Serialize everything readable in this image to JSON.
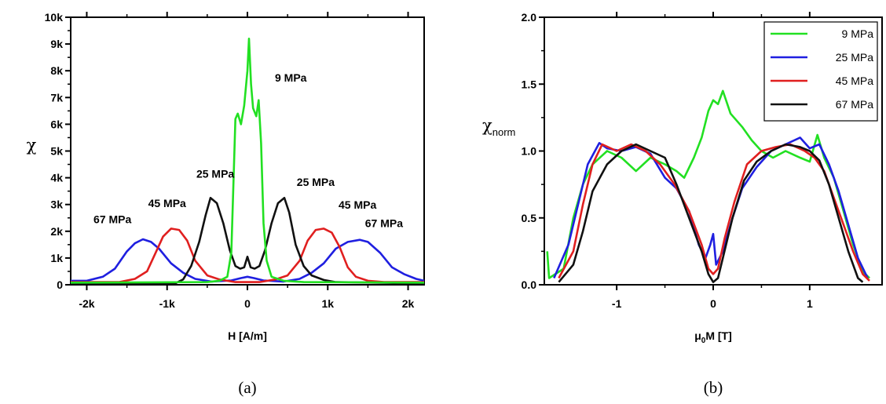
{
  "chart_data": [
    {
      "type": "line",
      "caption": "(a)",
      "xlabel": "H [A/m]",
      "ylabel": "χ",
      "xlim": [
        -2200,
        2200
      ],
      "ylim": [
        0,
        10000
      ],
      "x_ticks": [
        {
          "value": -2000,
          "label": "-2k"
        },
        {
          "value": -1000,
          "label": "-1k"
        },
        {
          "value": 0,
          "label": "0"
        },
        {
          "value": 1000,
          "label": "1k"
        },
        {
          "value": 2000,
          "label": "2k"
        }
      ],
      "y_ticks": [
        {
          "value": 0,
          "label": "0"
        },
        {
          "value": 1000,
          "label": "1k"
        },
        {
          "value": 2000,
          "label": "2k"
        },
        {
          "value": 3000,
          "label": "3k"
        },
        {
          "value": 4000,
          "label": "4k"
        },
        {
          "value": 5000,
          "label": "5k"
        },
        {
          "value": 6000,
          "label": "6k"
        },
        {
          "value": 7000,
          "label": "7k"
        },
        {
          "value": 8000,
          "label": "8k"
        },
        {
          "value": 9000,
          "label": "9k"
        },
        {
          "value": 10000,
          "label": "10k"
        }
      ],
      "grid": false,
      "series": [
        {
          "name": "67 MPa",
          "color": "#1f1fe0",
          "points": [
            [
              -2200,
              150
            ],
            [
              -2000,
              150
            ],
            [
              -1800,
              300
            ],
            [
              -1650,
              600
            ],
            [
              -1500,
              1250
            ],
            [
              -1400,
              1550
            ],
            [
              -1300,
              1700
            ],
            [
              -1200,
              1600
            ],
            [
              -1100,
              1350
            ],
            [
              -950,
              800
            ],
            [
              -800,
              450
            ],
            [
              -650,
              220
            ],
            [
              -450,
              120
            ],
            [
              -200,
              160
            ],
            [
              -80,
              250
            ],
            [
              0,
              300
            ],
            [
              80,
              250
            ],
            [
              200,
              160
            ],
            [
              450,
              120
            ],
            [
              650,
              220
            ],
            [
              800,
              450
            ],
            [
              950,
              800
            ],
            [
              1100,
              1350
            ],
            [
              1250,
              1600
            ],
            [
              1400,
              1680
            ],
            [
              1500,
              1600
            ],
            [
              1650,
              1200
            ],
            [
              1800,
              650
            ],
            [
              1950,
              400
            ],
            [
              2100,
              220
            ],
            [
              2200,
              150
            ]
          ]
        },
        {
          "name": "45 MPa",
          "color": "#e01f1f",
          "points": [
            [
              -2200,
              100
            ],
            [
              -1600,
              100
            ],
            [
              -1400,
              220
            ],
            [
              -1250,
              500
            ],
            [
              -1150,
              1150
            ],
            [
              -1050,
              1800
            ],
            [
              -950,
              2100
            ],
            [
              -850,
              2050
            ],
            [
              -750,
              1650
            ],
            [
              -650,
              900
            ],
            [
              -500,
              350
            ],
            [
              -350,
              200
            ],
            [
              -150,
              100
            ],
            [
              0,
              100
            ],
            [
              150,
              100
            ],
            [
              350,
              200
            ],
            [
              500,
              350
            ],
            [
              650,
              900
            ],
            [
              750,
              1650
            ],
            [
              850,
              2050
            ],
            [
              950,
              2100
            ],
            [
              1050,
              1950
            ],
            [
              1150,
              1400
            ],
            [
              1250,
              650
            ],
            [
              1350,
              300
            ],
            [
              1500,
              150
            ],
            [
              1700,
              100
            ],
            [
              2200,
              100
            ]
          ]
        },
        {
          "name": "25 MPa",
          "color": "#111111",
          "points": [
            [
              -2200,
              50
            ],
            [
              -900,
              50
            ],
            [
              -800,
              200
            ],
            [
              -700,
              700
            ],
            [
              -600,
              1600
            ],
            [
              -520,
              2600
            ],
            [
              -460,
              3250
            ],
            [
              -380,
              3050
            ],
            [
              -300,
              2300
            ],
            [
              -220,
              1300
            ],
            [
              -150,
              700
            ],
            [
              -90,
              600
            ],
            [
              -40,
              650
            ],
            [
              0,
              1050
            ],
            [
              40,
              650
            ],
            [
              90,
              600
            ],
            [
              150,
              700
            ],
            [
              220,
              1300
            ],
            [
              300,
              2300
            ],
            [
              380,
              3050
            ],
            [
              460,
              3250
            ],
            [
              520,
              2700
            ],
            [
              600,
              1500
            ],
            [
              700,
              700
            ],
            [
              800,
              350
            ],
            [
              950,
              180
            ],
            [
              1100,
              100
            ],
            [
              2200,
              50
            ]
          ]
        },
        {
          "name": "9 MPa",
          "color": "#22e022",
          "points": [
            [
              -2200,
              80
            ],
            [
              -500,
              100
            ],
            [
              -350,
              150
            ],
            [
              -250,
              300
            ],
            [
              -200,
              1200
            ],
            [
              -150,
              6200
            ],
            [
              -120,
              6400
            ],
            [
              -80,
              6000
            ],
            [
              -40,
              6700
            ],
            [
              0,
              8000
            ],
            [
              20,
              9200
            ],
            [
              45,
              7500
            ],
            [
              70,
              6600
            ],
            [
              110,
              6300
            ],
            [
              140,
              6900
            ],
            [
              170,
              5300
            ],
            [
              200,
              2300
            ],
            [
              240,
              900
            ],
            [
              300,
              300
            ],
            [
              450,
              150
            ],
            [
              700,
              100
            ],
            [
              2200,
              80
            ]
          ]
        }
      ],
      "annotations": [
        {
          "text": "9 MPa",
          "x": 540,
          "y": 7600
        },
        {
          "text": "25 MPa",
          "x": -400,
          "y": 4000
        },
        {
          "text": "25 MPa",
          "x": 850,
          "y": 3700
        },
        {
          "text": "45 MPa",
          "x": -1000,
          "y": 2900
        },
        {
          "text": "45 MPa",
          "x": 1370,
          "y": 2850
        },
        {
          "text": "67 MPa",
          "x": -1680,
          "y": 2300
        },
        {
          "text": "67 MPa",
          "x": 1700,
          "y": 2150
        }
      ]
    },
    {
      "type": "line",
      "caption": "(b)",
      "xlabel_main": "μ",
      "xlabel_sub": "0",
      "xlabel_rest": "M [T]",
      "ylabel_main": "χ",
      "ylabel_sub": "norm",
      "xlim": [
        -1.75,
        1.75
      ],
      "ylim": [
        0,
        2
      ],
      "x_ticks": [
        {
          "value": -1,
          "label": "-1"
        },
        {
          "value": 0,
          "label": "0"
        },
        {
          "value": 1,
          "label": "1"
        }
      ],
      "y_ticks": [
        {
          "value": 0,
          "label": "0.0"
        },
        {
          "value": 0.5,
          "label": "0.5"
        },
        {
          "value": 1,
          "label": "1.0"
        },
        {
          "value": 1.5,
          "label": "1.5"
        },
        {
          "value": 2,
          "label": "2.0"
        }
      ],
      "grid": false,
      "legend": {
        "position": "top-right",
        "entries": [
          {
            "label": "9 MPa",
            "color": "#22e022"
          },
          {
            "label": "25 MPa",
            "color": "#1f1fe0"
          },
          {
            "label": "45 MPa",
            "color": "#e01f1f"
          },
          {
            "label": "67 MPa",
            "color": "#111111"
          }
        ]
      },
      "series": [
        {
          "name": "9 MPa",
          "color": "#22e022",
          "points": [
            [
              -1.72,
              0.25
            ],
            [
              -1.7,
              0.05
            ],
            [
              -1.55,
              0.12
            ],
            [
              -1.45,
              0.5
            ],
            [
              -1.35,
              0.75
            ],
            [
              -1.25,
              0.9
            ],
            [
              -1.1,
              1.0
            ],
            [
              -0.95,
              0.95
            ],
            [
              -0.8,
              0.85
            ],
            [
              -0.65,
              0.95
            ],
            [
              -0.5,
              0.9
            ],
            [
              -0.38,
              0.85
            ],
            [
              -0.3,
              0.8
            ],
            [
              -0.2,
              0.95
            ],
            [
              -0.12,
              1.1
            ],
            [
              -0.05,
              1.3
            ],
            [
              0,
              1.38
            ],
            [
              0.05,
              1.35
            ],
            [
              0.1,
              1.45
            ],
            [
              0.18,
              1.28
            ],
            [
              0.3,
              1.18
            ],
            [
              0.4,
              1.08
            ],
            [
              0.5,
              1.0
            ],
            [
              0.62,
              0.95
            ],
            [
              0.75,
              1.0
            ],
            [
              0.9,
              0.95
            ],
            [
              1.0,
              0.92
            ],
            [
              1.08,
              1.12
            ],
            [
              1.15,
              0.95
            ],
            [
              1.25,
              0.8
            ],
            [
              1.35,
              0.55
            ],
            [
              1.45,
              0.3
            ],
            [
              1.55,
              0.1
            ],
            [
              1.62,
              0.05
            ]
          ]
        },
        {
          "name": "25 MPa",
          "color": "#1f1fe0",
          "points": [
            [
              -1.65,
              0.05
            ],
            [
              -1.5,
              0.3
            ],
            [
              -1.4,
              0.6
            ],
            [
              -1.3,
              0.9
            ],
            [
              -1.18,
              1.06
            ],
            [
              -1.1,
              1.02
            ],
            [
              -0.95,
              1.0
            ],
            [
              -0.8,
              1.03
            ],
            [
              -0.65,
              0.98
            ],
            [
              -0.5,
              0.8
            ],
            [
              -0.38,
              0.72
            ],
            [
              -0.25,
              0.55
            ],
            [
              -0.15,
              0.3
            ],
            [
              -0.08,
              0.2
            ],
            [
              -0.03,
              0.3
            ],
            [
              0,
              0.38
            ],
            [
              0.03,
              0.15
            ],
            [
              0.1,
              0.25
            ],
            [
              0.2,
              0.5
            ],
            [
              0.3,
              0.72
            ],
            [
              0.45,
              0.88
            ],
            [
              0.6,
              1.0
            ],
            [
              0.75,
              1.05
            ],
            [
              0.9,
              1.1
            ],
            [
              1.0,
              1.02
            ],
            [
              1.1,
              1.05
            ],
            [
              1.2,
              0.9
            ],
            [
              1.3,
              0.7
            ],
            [
              1.4,
              0.45
            ],
            [
              1.5,
              0.2
            ],
            [
              1.6,
              0.05
            ]
          ]
        },
        {
          "name": "45 MPa",
          "color": "#e01f1f",
          "points": [
            [
              -1.6,
              0.05
            ],
            [
              -1.45,
              0.25
            ],
            [
              -1.35,
              0.6
            ],
            [
              -1.25,
              0.9
            ],
            [
              -1.15,
              1.05
            ],
            [
              -1.0,
              1.0
            ],
            [
              -0.85,
              1.05
            ],
            [
              -0.7,
              1.0
            ],
            [
              -0.55,
              0.9
            ],
            [
              -0.4,
              0.75
            ],
            [
              -0.25,
              0.55
            ],
            [
              -0.12,
              0.3
            ],
            [
              -0.05,
              0.12
            ],
            [
              0,
              0.08
            ],
            [
              0.05,
              0.12
            ],
            [
              0.12,
              0.35
            ],
            [
              0.22,
              0.62
            ],
            [
              0.35,
              0.9
            ],
            [
              0.5,
              1.0
            ],
            [
              0.65,
              1.03
            ],
            [
              0.8,
              1.05
            ],
            [
              0.95,
              1.0
            ],
            [
              1.05,
              0.95
            ],
            [
              1.15,
              0.85
            ],
            [
              1.25,
              0.65
            ],
            [
              1.35,
              0.45
            ],
            [
              1.45,
              0.25
            ],
            [
              1.55,
              0.08
            ],
            [
              1.62,
              0.03
            ]
          ]
        },
        {
          "name": "67 MPa",
          "color": "#111111",
          "points": [
            [
              -1.6,
              0.02
            ],
            [
              -1.45,
              0.15
            ],
            [
              -1.35,
              0.4
            ],
            [
              -1.25,
              0.7
            ],
            [
              -1.1,
              0.9
            ],
            [
              -0.95,
              1.0
            ],
            [
              -0.8,
              1.05
            ],
            [
              -0.65,
              1.0
            ],
            [
              -0.5,
              0.95
            ],
            [
              -0.38,
              0.75
            ],
            [
              -0.25,
              0.5
            ],
            [
              -0.12,
              0.25
            ],
            [
              -0.05,
              0.08
            ],
            [
              0,
              0.02
            ],
            [
              0.05,
              0.05
            ],
            [
              0.1,
              0.2
            ],
            [
              0.2,
              0.5
            ],
            [
              0.32,
              0.78
            ],
            [
              0.45,
              0.92
            ],
            [
              0.6,
              1.0
            ],
            [
              0.75,
              1.05
            ],
            [
              0.9,
              1.03
            ],
            [
              1.0,
              1.0
            ],
            [
              1.1,
              0.93
            ],
            [
              1.2,
              0.75
            ],
            [
              1.3,
              0.5
            ],
            [
              1.4,
              0.25
            ],
            [
              1.5,
              0.05
            ],
            [
              1.55,
              0.02
            ]
          ]
        }
      ]
    }
  ]
}
